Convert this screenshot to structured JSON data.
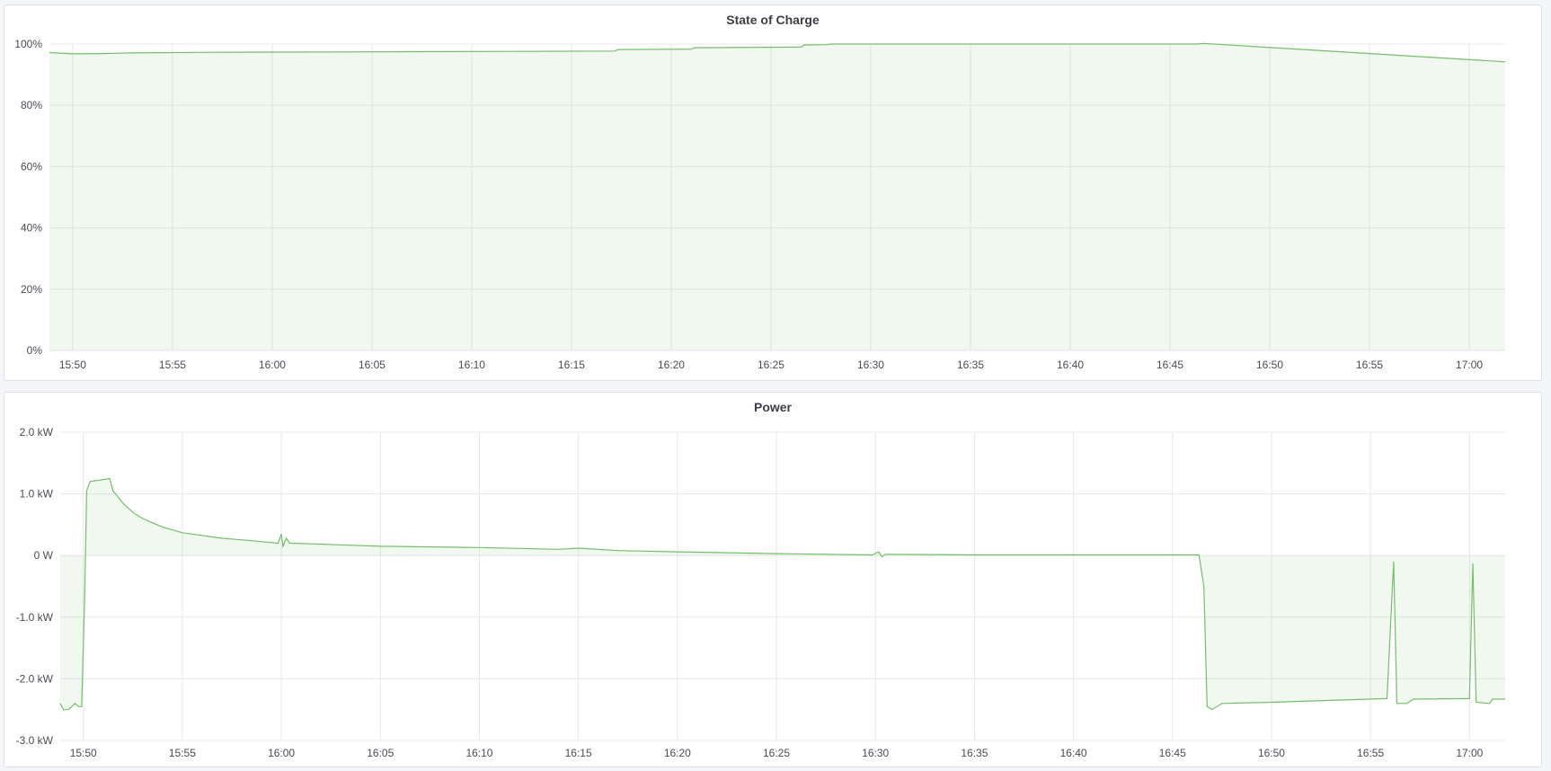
{
  "chart_data": [
    {
      "type": "area",
      "title": "State of Charge",
      "x_range": [
        "15:48:50",
        "17:01:48"
      ],
      "ylim": [
        0,
        100
      ],
      "y_ticks": [
        "0%",
        "20%",
        "40%",
        "60%",
        "80%",
        "100%"
      ],
      "y_tick_values": [
        0,
        20,
        40,
        60,
        80,
        100
      ],
      "x_ticks": [
        "15:50",
        "15:55",
        "16:00",
        "16:05",
        "16:10",
        "16:15",
        "16:20",
        "16:25",
        "16:30",
        "16:35",
        "16:40",
        "16:45",
        "16:50",
        "16:55",
        "17:00"
      ],
      "grid": true,
      "color": "#73bf69",
      "points": [
        [
          "15:48:50",
          97.2
        ],
        [
          "15:50:00",
          96.8
        ],
        [
          "15:51:30",
          96.9
        ],
        [
          "15:53:00",
          97.1
        ],
        [
          "15:57:00",
          97.3
        ],
        [
          "16:02:30",
          97.4
        ],
        [
          "16:07:00",
          97.5
        ],
        [
          "16:12:00",
          97.6
        ],
        [
          "16:17:10",
          97.7
        ],
        [
          "16:17:20",
          98.2
        ],
        [
          "16:21:00",
          98.3
        ],
        [
          "16:21:10",
          98.8
        ],
        [
          "16:26:30",
          99.0
        ],
        [
          "16:26:40",
          99.7
        ],
        [
          "16:27:50",
          99.8
        ],
        [
          "16:28:00",
          100
        ],
        [
          "16:46:20",
          100
        ],
        [
          "16:46:40",
          100.2
        ],
        [
          "17:01:48",
          94.2
        ]
      ]
    },
    {
      "type": "area",
      "title": "Power",
      "x_range": [
        "15:48:50",
        "17:01:48"
      ],
      "ylim": [
        -3.0,
        2.0
      ],
      "y_ticks": [
        "-3.0 kW",
        "-2.0 kW",
        "-1.0 kW",
        "0 W",
        "1.0 kW",
        "2.0 kW"
      ],
      "y_tick_values": [
        -3,
        -2,
        -1,
        0,
        1,
        2
      ],
      "x_ticks": [
        "15:50",
        "15:55",
        "16:00",
        "16:05",
        "16:10",
        "16:15",
        "16:20",
        "16:25",
        "16:30",
        "16:35",
        "16:40",
        "16:45",
        "16:50",
        "16:55",
        "17:00"
      ],
      "grid": true,
      "color": "#73bf69",
      "points": [
        [
          "15:48:50",
          -2.4
        ],
        [
          "15:49:00",
          -2.5
        ],
        [
          "15:49:15",
          -2.5
        ],
        [
          "15:49:35",
          -2.4
        ],
        [
          "15:49:45",
          -2.45
        ],
        [
          "15:49:55",
          -2.45
        ],
        [
          "15:50:05",
          -0.5
        ],
        [
          "15:50:10",
          1.05
        ],
        [
          "15:50:20",
          1.2
        ],
        [
          "15:51:20",
          1.25
        ],
        [
          "15:51:30",
          1.05
        ],
        [
          "15:52:00",
          0.85
        ],
        [
          "15:52:30",
          0.7
        ],
        [
          "15:53:00",
          0.6
        ],
        [
          "15:54:00",
          0.46
        ],
        [
          "15:55:00",
          0.37
        ],
        [
          "15:57:00",
          0.28
        ],
        [
          "15:58:30",
          0.24
        ],
        [
          "15:59:50",
          0.2
        ],
        [
          "16:00:00",
          0.35
        ],
        [
          "16:00:05",
          0.15
        ],
        [
          "16:00:15",
          0.28
        ],
        [
          "16:00:25",
          0.2
        ],
        [
          "16:00:35",
          0.2
        ],
        [
          "16:05:00",
          0.15
        ],
        [
          "16:10:00",
          0.13
        ],
        [
          "16:14:00",
          0.1
        ],
        [
          "16:15:00",
          0.12
        ],
        [
          "16:17:00",
          0.08
        ],
        [
          "16:20:00",
          0.06
        ],
        [
          "16:25:00",
          0.03
        ],
        [
          "16:29:50",
          0.01
        ],
        [
          "16:30:10",
          0.06
        ],
        [
          "16:30:20",
          -0.02
        ],
        [
          "16:30:30",
          0.02
        ],
        [
          "16:35:00",
          0.01
        ],
        [
          "16:46:20",
          0.01
        ],
        [
          "16:46:35",
          -0.5
        ],
        [
          "16:46:45",
          -2.45
        ],
        [
          "16:47:00",
          -2.5
        ],
        [
          "16:47:30",
          -2.4
        ],
        [
          "16:50:00",
          -2.38
        ],
        [
          "16:53:00",
          -2.35
        ],
        [
          "16:55:50",
          -2.32
        ],
        [
          "16:56:10",
          -0.1
        ],
        [
          "16:56:20",
          -2.4
        ],
        [
          "16:56:50",
          -2.4
        ],
        [
          "16:57:10",
          -2.33
        ],
        [
          "17:00:00",
          -2.32
        ],
        [
          "17:00:10",
          -0.13
        ],
        [
          "17:00:20",
          -2.38
        ],
        [
          "17:01:00",
          -2.4
        ],
        [
          "17:01:10",
          -2.33
        ],
        [
          "17:01:48",
          -2.33
        ]
      ]
    }
  ]
}
